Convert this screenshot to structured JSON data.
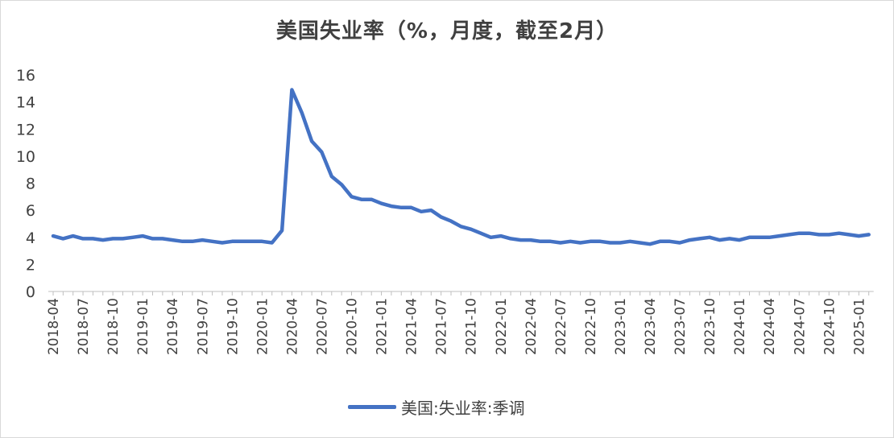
{
  "chart_data": {
    "type": "line",
    "title": "美国失业率（%，月度，截至2月）",
    "xlabel": "",
    "ylabel": "",
    "ylim": [
      0,
      16
    ],
    "yticks": [
      0,
      2,
      4,
      6,
      8,
      10,
      12,
      14,
      16
    ],
    "x_tick_labels": [
      "2018-04",
      "2018-07",
      "2018-10",
      "2019-01",
      "2019-04",
      "2019-07",
      "2019-10",
      "2020-01",
      "2020-04",
      "2020-07",
      "2020-10",
      "2021-01",
      "2021-04",
      "2021-07",
      "2021-10",
      "2022-01",
      "2022-04",
      "2022-07",
      "2022-10",
      "2023-01",
      "2023-04",
      "2023-07",
      "2023-10",
      "2024-01",
      "2024-04",
      "2024-07",
      "2024-10",
      "2025-01"
    ],
    "grid": false,
    "legend_position": "bottom",
    "color": "#4472C4",
    "series": [
      {
        "name": "美国:失业率:季调",
        "x": [
          "2018-04",
          "2018-05",
          "2018-06",
          "2018-07",
          "2018-08",
          "2018-09",
          "2018-10",
          "2018-11",
          "2018-12",
          "2019-01",
          "2019-02",
          "2019-03",
          "2019-04",
          "2019-05",
          "2019-06",
          "2019-07",
          "2019-08",
          "2019-09",
          "2019-10",
          "2019-11",
          "2019-12",
          "2020-01",
          "2020-02",
          "2020-03",
          "2020-04",
          "2020-05",
          "2020-06",
          "2020-07",
          "2020-08",
          "2020-09",
          "2020-10",
          "2020-11",
          "2020-12",
          "2021-01",
          "2021-02",
          "2021-03",
          "2021-04",
          "2021-05",
          "2021-06",
          "2021-07",
          "2021-08",
          "2021-09",
          "2021-10",
          "2021-11",
          "2021-12",
          "2022-01",
          "2022-02",
          "2022-03",
          "2022-04",
          "2022-05",
          "2022-06",
          "2022-07",
          "2022-08",
          "2022-09",
          "2022-10",
          "2022-11",
          "2022-12",
          "2023-01",
          "2023-02",
          "2023-03",
          "2023-04",
          "2023-05",
          "2023-06",
          "2023-07",
          "2023-08",
          "2023-09",
          "2023-10",
          "2023-11",
          "2023-12",
          "2024-01",
          "2024-02",
          "2024-03",
          "2024-04",
          "2024-05",
          "2024-06",
          "2024-07",
          "2024-08",
          "2024-09",
          "2024-10",
          "2024-11",
          "2024-12",
          "2025-01",
          "2025-02"
        ],
        "values": [
          4.1,
          3.9,
          4.1,
          3.9,
          3.9,
          3.8,
          3.9,
          3.9,
          4.0,
          4.1,
          3.9,
          3.9,
          3.8,
          3.7,
          3.7,
          3.8,
          3.7,
          3.6,
          3.7,
          3.7,
          3.7,
          3.7,
          3.6,
          4.5,
          14.9,
          13.2,
          11.1,
          10.3,
          8.5,
          7.9,
          7.0,
          6.8,
          6.8,
          6.5,
          6.3,
          6.2,
          6.2,
          5.9,
          6.0,
          5.5,
          5.2,
          4.8,
          4.6,
          4.3,
          4.0,
          4.1,
          3.9,
          3.8,
          3.8,
          3.7,
          3.7,
          3.6,
          3.7,
          3.6,
          3.7,
          3.7,
          3.6,
          3.6,
          3.7,
          3.6,
          3.5,
          3.7,
          3.7,
          3.6,
          3.8,
          3.9,
          4.0,
          3.8,
          3.9,
          3.8,
          4.0,
          4.0,
          4.0,
          4.1,
          4.2,
          4.3,
          4.3,
          4.2,
          4.2,
          4.3,
          4.2,
          4.1,
          4.2
        ]
      }
    ]
  }
}
